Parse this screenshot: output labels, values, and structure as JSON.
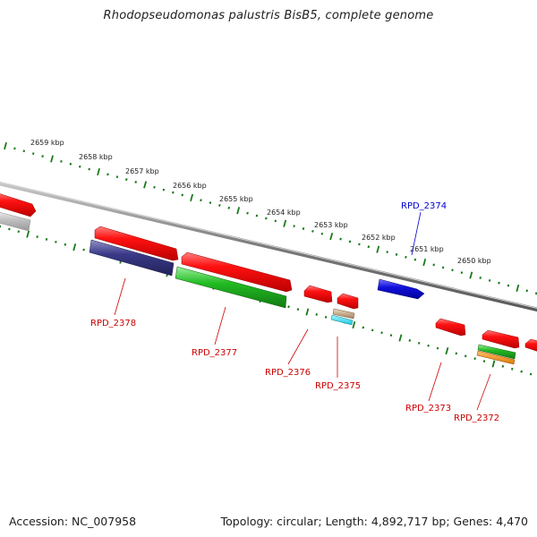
{
  "title": "Rhodopseudomonas palustris BisB5, complete genome",
  "footer": {
    "accession": "Accession: NC_007958",
    "summary": "Topology: circular; Length: 4,892,717 bp; Genes: 4,470"
  },
  "colors": {
    "backbone": "#8a8a8a",
    "tick_green": "#1a7a1a",
    "label_red": "#cc0000",
    "label_blue": "#0000cc"
  },
  "kbp_labels": [
    "2659 kbp",
    "2658 kbp",
    "2657 kbp",
    "2656 kbp",
    "2655 kbp",
    "2654 kbp",
    "2653 kbp",
    "2652 kbp",
    "2651 kbp",
    "2650 kbp"
  ],
  "gene_labels": [
    {
      "name": "RPD_2378",
      "color": "#cc0000"
    },
    {
      "name": "RPD_2377",
      "color": "#cc0000"
    },
    {
      "name": "RPD_2376",
      "color": "#cc0000"
    },
    {
      "name": "RPD_2375",
      "color": "#cc0000"
    },
    {
      "name": "RPD_2374",
      "color": "#0000cc"
    },
    {
      "name": "RPD_2373",
      "color": "#cc0000"
    },
    {
      "name": "RPD_2372",
      "color": "#cc0000"
    }
  ],
  "feature_colors": {
    "red": "#ee1111",
    "green": "#22bb22",
    "navy": "#3a3a88",
    "blue": "#1111dd",
    "gray": "#bbbbbb",
    "tan": "#c8a878",
    "cyan": "#22ddee",
    "orange": "#ee8811"
  }
}
